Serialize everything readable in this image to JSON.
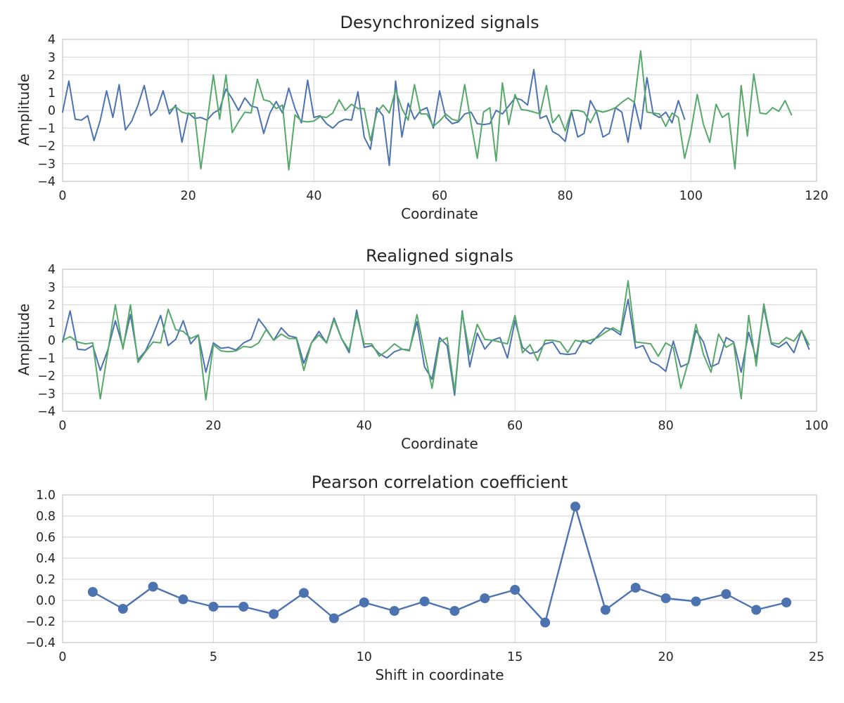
{
  "figure": {
    "background": "#ffffff"
  },
  "colors": {
    "signal1": "#4C72B0",
    "signal2": "#55A868",
    "grid": "#DBDBDB",
    "spine": "#CCCCCC",
    "text": "#262626"
  },
  "chart_data": [
    {
      "type": "line",
      "title": "Desynchronized signals",
      "xlabel": "Coordinate",
      "ylabel": "Amplitude",
      "xlim": [
        0,
        120
      ],
      "ylim": [
        -4,
        4
      ],
      "grid": true,
      "legend": "none",
      "xticks": {
        "values": [
          0,
          20,
          40,
          60,
          80,
          100,
          120
        ],
        "labels": [
          "0",
          "20",
          "40",
          "60",
          "80",
          "100",
          "120"
        ]
      },
      "yticks": {
        "values": [
          4,
          3,
          2,
          1,
          0,
          -1,
          -2,
          -3,
          -4
        ],
        "labels": [
          "4",
          "3",
          "2",
          "1",
          "0",
          "−1",
          "−2",
          "−3",
          "−4"
        ]
      },
      "series": [
        {
          "name": "signal-1",
          "color_key": "signal1",
          "markers": false,
          "x_start": 0,
          "x_step": 1,
          "values": [
            -0.1,
            1.65,
            -0.5,
            -0.55,
            -0.3,
            -1.7,
            -0.55,
            1.1,
            -0.4,
            1.45,
            -1.1,
            -0.6,
            0.3,
            1.4,
            -0.3,
            0.05,
            1.1,
            -0.2,
            0.3,
            -1.8,
            -0.15,
            -0.45,
            -0.4,
            -0.55,
            -0.15,
            0.05,
            1.2,
            0.65,
            0.0,
            0.7,
            0.25,
            0.15,
            -1.3,
            -0.15,
            0.5,
            -0.15,
            1.25,
            0.1,
            -0.7,
            1.7,
            -0.4,
            -0.3,
            -0.75,
            -1.0,
            -0.65,
            -0.5,
            -0.55,
            1.05,
            -1.5,
            -2.2,
            0.15,
            -0.3,
            -3.1,
            1.65,
            -1.5,
            0.4,
            -0.5,
            0.0,
            0.15,
            -1.0,
            1.1,
            -0.4,
            -0.75,
            -0.65,
            -0.2,
            -0.1,
            -0.75,
            -0.8,
            -0.75,
            0.0,
            -0.2,
            0.25,
            0.7,
            0.6,
            0.3,
            2.3,
            -0.45,
            -0.3,
            -1.2,
            -1.4,
            -1.75,
            -0.05,
            -1.5,
            -1.3,
            0.55,
            -0.1,
            -1.5,
            -1.3,
            0.15,
            -0.1,
            -1.8,
            0.45,
            -1.05,
            1.85,
            -0.2,
            -0.4,
            -0.1,
            -0.7,
            0.55,
            -0.5
          ]
        },
        {
          "name": "signal-2-shifted",
          "color_key": "signal2",
          "markers": false,
          "x_start": 17,
          "x_step": 1,
          "values": [
            0.0,
            0.2,
            -0.1,
            -0.2,
            -0.15,
            -3.3,
            -0.65,
            2.0,
            -0.5,
            2.0,
            -1.25,
            -0.65,
            -0.1,
            -0.15,
            1.75,
            0.6,
            0.5,
            0.1,
            0.3,
            -3.35,
            -0.25,
            -0.6,
            -0.65,
            -0.6,
            -0.35,
            -0.4,
            -0.15,
            0.6,
            0.0,
            0.35,
            0.1,
            0.1,
            -1.7,
            -0.15,
            0.3,
            -0.15,
            1.15,
            0.1,
            -0.55,
            1.45,
            -0.2,
            -0.2,
            -0.9,
            -0.6,
            -0.2,
            -0.5,
            -0.6,
            1.45,
            -0.7,
            -2.7,
            -0.1,
            0.15,
            -2.85,
            1.55,
            -0.8,
            0.9,
            0.05,
            0.0,
            -0.1,
            -0.2,
            1.4,
            -0.7,
            -0.25,
            -1.15,
            0.0,
            0.0,
            -0.1,
            -0.7,
            0.0,
            -0.1,
            0.0,
            0.15,
            0.45,
            0.7,
            0.45,
            3.35,
            -0.1,
            -0.15,
            -0.2,
            -0.9,
            -0.15,
            -0.4,
            -2.7,
            -1.2,
            0.9,
            -0.8,
            -1.8,
            0.35,
            -0.4,
            -0.15,
            -3.3,
            1.4,
            -1.45,
            2.05,
            -0.15,
            -0.2,
            0.15,
            -0.05,
            0.55,
            -0.25
          ]
        }
      ]
    },
    {
      "type": "line",
      "title": "Realigned signals",
      "xlabel": "Coordinate",
      "ylabel": "Amplitude",
      "xlim": [
        0,
        100
      ],
      "ylim": [
        -4,
        4
      ],
      "grid": true,
      "legend": "none",
      "xticks": {
        "values": [
          0,
          20,
          40,
          60,
          80,
          100
        ],
        "labels": [
          "0",
          "20",
          "40",
          "60",
          "80",
          "100"
        ]
      },
      "yticks": {
        "values": [
          4,
          3,
          2,
          1,
          0,
          -1,
          -2,
          -3,
          -4
        ],
        "labels": [
          "4",
          "3",
          "2",
          "1",
          "0",
          "−1",
          "−2",
          "−3",
          "−4"
        ]
      },
      "series": [
        {
          "name": "signal-1",
          "color_key": "signal1",
          "markers": false,
          "x_start": 0,
          "x_step": 1,
          "values": [
            -0.1,
            1.65,
            -0.5,
            -0.55,
            -0.3,
            -1.7,
            -0.55,
            1.1,
            -0.4,
            1.45,
            -1.1,
            -0.6,
            0.3,
            1.4,
            -0.3,
            0.05,
            1.1,
            -0.2,
            0.3,
            -1.8,
            -0.15,
            -0.45,
            -0.4,
            -0.55,
            -0.15,
            0.05,
            1.2,
            0.65,
            0.0,
            0.7,
            0.25,
            0.15,
            -1.3,
            -0.15,
            0.5,
            -0.15,
            1.25,
            0.1,
            -0.7,
            1.7,
            -0.4,
            -0.3,
            -0.75,
            -1.0,
            -0.65,
            -0.5,
            -0.55,
            1.05,
            -1.5,
            -2.2,
            0.15,
            -0.3,
            -3.1,
            1.65,
            -1.5,
            0.4,
            -0.5,
            0.0,
            0.15,
            -1.0,
            1.1,
            -0.4,
            -0.75,
            -0.65,
            -0.2,
            -0.1,
            -0.75,
            -0.8,
            -0.75,
            0.0,
            -0.2,
            0.25,
            0.7,
            0.6,
            0.3,
            2.3,
            -0.45,
            -0.3,
            -1.2,
            -1.4,
            -1.75,
            -0.05,
            -1.5,
            -1.3,
            0.55,
            -0.1,
            -1.5,
            -1.3,
            0.15,
            -0.1,
            -1.8,
            0.45,
            -1.05,
            1.85,
            -0.2,
            -0.4,
            -0.1,
            -0.7,
            0.55,
            -0.5
          ]
        },
        {
          "name": "signal-2-realigned",
          "color_key": "signal2",
          "markers": false,
          "x_start": 0,
          "x_step": 1,
          "values": [
            0.0,
            0.2,
            -0.1,
            -0.2,
            -0.15,
            -3.3,
            -0.65,
            2.0,
            -0.5,
            2.0,
            -1.25,
            -0.65,
            -0.1,
            -0.15,
            1.75,
            0.6,
            0.5,
            0.1,
            0.3,
            -3.35,
            -0.25,
            -0.6,
            -0.65,
            -0.6,
            -0.35,
            -0.4,
            -0.15,
            0.6,
            0.0,
            0.35,
            0.1,
            0.1,
            -1.7,
            -0.15,
            0.3,
            -0.15,
            1.15,
            0.1,
            -0.55,
            1.45,
            -0.2,
            -0.2,
            -0.9,
            -0.6,
            -0.2,
            -0.5,
            -0.6,
            1.45,
            -0.7,
            -2.7,
            -0.1,
            0.15,
            -2.85,
            1.55,
            -0.8,
            0.9,
            0.05,
            0.0,
            -0.1,
            -0.2,
            1.4,
            -0.7,
            -0.25,
            -1.15,
            0.0,
            0.0,
            -0.1,
            -0.7,
            0.0,
            -0.1,
            0.0,
            0.15,
            0.45,
            0.7,
            0.45,
            3.35,
            -0.1,
            -0.15,
            -0.2,
            -0.9,
            -0.15,
            -0.4,
            -2.7,
            -1.2,
            0.9,
            -0.8,
            -1.8,
            0.35,
            -0.4,
            -0.15,
            -3.3,
            1.4,
            -1.45,
            2.05,
            -0.15,
            -0.2,
            0.15,
            -0.05,
            0.55,
            -0.25
          ]
        }
      ]
    },
    {
      "type": "line",
      "title": "Pearson correlation coefficient",
      "xlabel": "Shift in coordinate",
      "ylabel": "",
      "xlim": [
        0,
        25
      ],
      "ylim": [
        -0.4,
        1.0
      ],
      "grid": true,
      "legend": "none",
      "xticks": {
        "values": [
          0,
          5,
          10,
          15,
          20,
          25
        ],
        "labels": [
          "0",
          "5",
          "10",
          "15",
          "20",
          "25"
        ]
      },
      "yticks": {
        "values": [
          1.0,
          0.8,
          0.6,
          0.4,
          0.2,
          0.0,
          -0.2,
          -0.4
        ],
        "labels": [
          "1.0",
          "0.8",
          "0.6",
          "0.4",
          "0.2",
          "0.0",
          "−0.2",
          "−0.4"
        ]
      },
      "series": [
        {
          "name": "pearson-r-vs-shift",
          "color_key": "signal1",
          "markers": true,
          "x_start": 1,
          "x_step": 1,
          "values": [
            0.08,
            -0.08,
            0.13,
            0.01,
            -0.06,
            -0.06,
            -0.13,
            0.07,
            -0.17,
            -0.02,
            -0.1,
            -0.01,
            -0.1,
            0.02,
            0.1,
            -0.21,
            0.89,
            -0.09,
            0.12,
            0.02,
            -0.01,
            0.06,
            -0.09,
            -0.02
          ]
        }
      ]
    }
  ]
}
